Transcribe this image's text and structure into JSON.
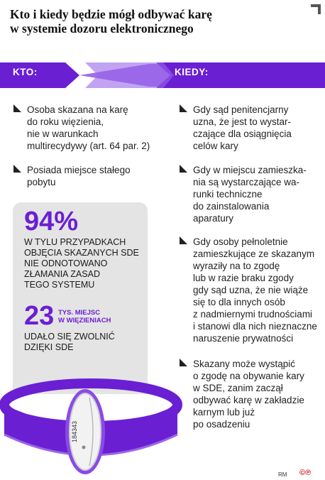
{
  "title": {
    "line1": "Kto i kiedy będzie mógł odbywać karę",
    "line2": "w systemie dozoru elektronicznego"
  },
  "colors": {
    "accent": "#6b1fd3",
    "panel": "#e4e4e4"
  },
  "kto": {
    "header": "KTO:",
    "items": [
      {
        "lines": [
          "Osoba skazana na karę",
          "do roku więzienia,",
          "nie w warunkach",
          "multirecydywy (art. 64 par. 2)"
        ]
      },
      {
        "lines": [
          "Posiada miejsce stałego",
          "pobytu"
        ]
      }
    ]
  },
  "kiedy": {
    "header": "KIEDY:",
    "items": [
      {
        "lines": [
          "Gdy sąd penitencjarny",
          "uzna, że jest to wystar-",
          "czające dla osiągnięcia",
          "celów kary"
        ]
      },
      {
        "lines": [
          "Gdy w miejscu zamieszka-",
          "nia są wystarczające wa-",
          "runki techniczne",
          "do zainstalowania",
          "aparatury"
        ]
      },
      {
        "lines": [
          "Gdy osoby pełnoletnie",
          "zamieszkujące ze skazanym",
          "wyraziły na to zgodę",
          "lub w razie braku zgody",
          "gdy sąd uzna, że nie wiąże",
          "się to dla innych osób",
          "z nadmiernymi trudnościami",
          "i stanowi dla nich nieznaczne",
          "naruszenie prywatności"
        ]
      },
      {
        "lines": [
          "Skazany może wystąpić",
          "o zgodę na obywanie kary",
          "w SDE, zanim zaczął",
          "odbywać karę w zakładzie",
          "karnym lub już",
          "po osadzeniu"
        ]
      }
    ]
  },
  "stats": {
    "stat1": {
      "value": "94%",
      "lines": [
        "W TYLU PRZYPADKACH",
        "OBJĘCIA SKAZANYCH SDE",
        "NIE ODNOTOWANO",
        "ZŁAMANIA ZASAD",
        "TEGO SYSTEMU"
      ]
    },
    "stat2": {
      "value": "23",
      "unit_lines": [
        "TYS. MIEJSC",
        "W WIĘZIENIACH"
      ],
      "lines": [
        "UDAŁO SIĘ ZWOLNIĆ",
        "DZIĘKI SDE"
      ]
    }
  },
  "device": {
    "serial": "184343"
  },
  "footer": {
    "author": "RM",
    "logo": "©℗"
  }
}
